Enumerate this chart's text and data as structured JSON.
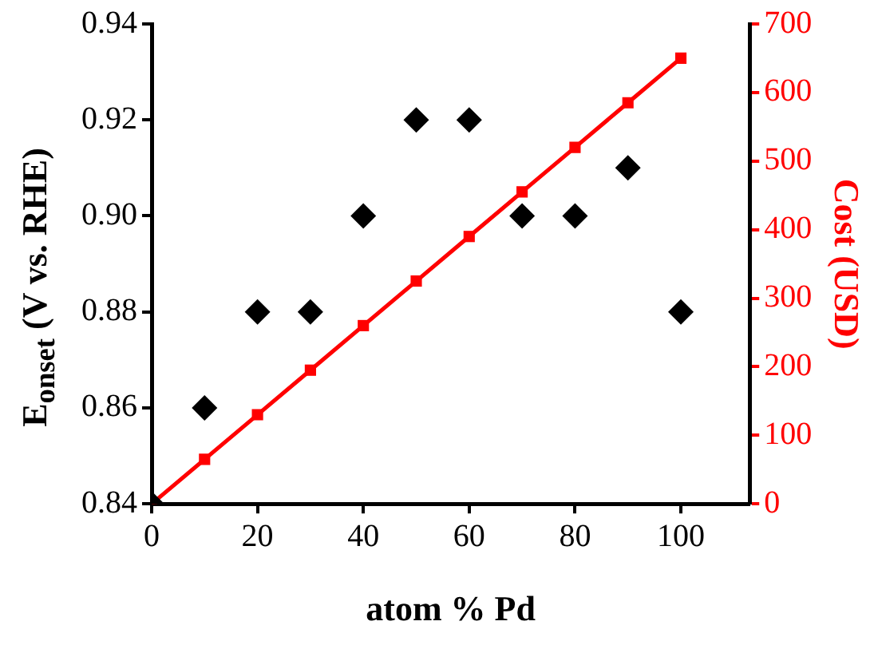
{
  "chart_data": {
    "type": "scatter",
    "xlabel": "atom % Pd",
    "ylabel": "E$_{onset}$ (V vs. RHE)",
    "y2label": "Cost (USD)",
    "x": [
      0,
      10,
      20,
      30,
      40,
      50,
      60,
      70,
      80,
      90,
      100
    ],
    "series": [
      {
        "color": "#000000",
        "marker": "diamond",
        "values": [
          0.84,
          0.86,
          0.88,
          0.88,
          0.9,
          0.92,
          0.92,
          0.9,
          0.9,
          0.91,
          0.88
        ]
      },
      {
        "type": "line",
        "axis": "y2",
        "color": "#ff0000",
        "marker": "square",
        "values": [
          0,
          65,
          130,
          195,
          260,
          325,
          390,
          455,
          520,
          585,
          650
        ]
      }
    ],
    "xlim": [
      0,
      113
    ],
    "xticks": [
      0,
      20,
      40,
      60,
      80,
      100
    ],
    "ylim": [
      0.84,
      0.94
    ],
    "yticks": [
      {
        "value": 0.84,
        "label": "0.84"
      },
      {
        "value": 0.86,
        "label": "0.86"
      },
      {
        "value": 0.88,
        "label": "0.88"
      },
      {
        "value": 0.9,
        "label": "0.90"
      },
      {
        "value": 0.92,
        "label": "0.92"
      },
      {
        "value": 0.94,
        "label": "0.94"
      }
    ],
    "y2lim": [
      0,
      700
    ],
    "y2ticks": [
      0,
      100,
      200,
      300,
      400,
      500,
      600,
      700
    ],
    "grid": false,
    "legend": false
  }
}
